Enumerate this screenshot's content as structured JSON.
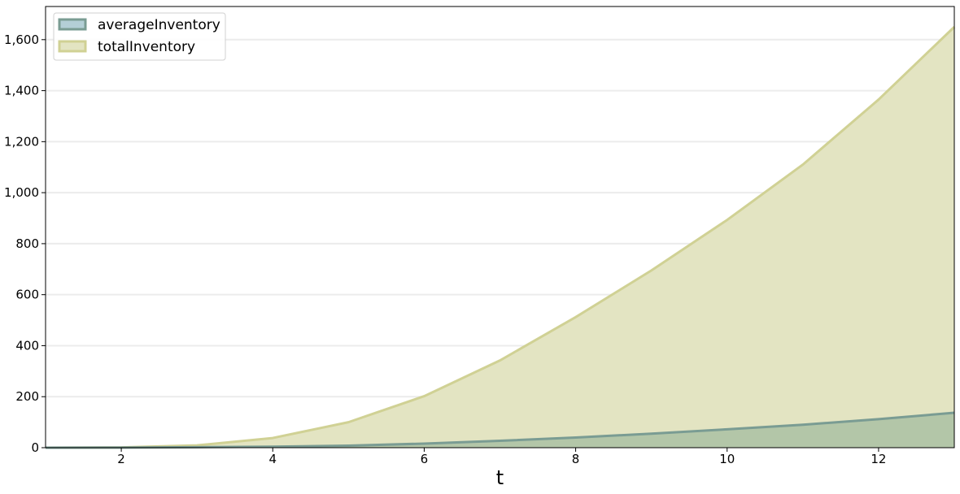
{
  "chart_data": {
    "type": "area",
    "title": "",
    "xlabel": "t",
    "ylabel": "",
    "x": [
      1,
      2,
      3,
      4,
      5,
      6,
      7,
      8,
      9,
      10,
      11,
      12,
      13
    ],
    "xlim": [
      1,
      13
    ],
    "ylim": [
      0,
      1730
    ],
    "xticks": [
      2,
      4,
      6,
      8,
      10,
      12
    ],
    "xtick_labels": [
      "2",
      "4",
      "6",
      "8",
      "10",
      "12"
    ],
    "yticks": [
      0,
      200,
      400,
      600,
      800,
      1000,
      1200,
      1400,
      1600
    ],
    "ytick_labels": [
      "0",
      "200",
      "400",
      "600",
      "800",
      "1,000",
      "1,200",
      "1,400",
      "1,600"
    ],
    "grid": "horizontal",
    "legend_position": "top-left",
    "series": [
      {
        "name": "averageInventory",
        "values": [
          0,
          0.5,
          2,
          4,
          8,
          16,
          27,
          40,
          55,
          72,
          90,
          112,
          137
        ],
        "fill_color": "#b4cfd6",
        "line_color": "#7a9c93"
      },
      {
        "name": "totalInventory",
        "values": [
          0,
          1,
          9,
          38,
          100,
          202,
          342,
          512,
          695,
          893,
          1110,
          1365,
          1650
        ],
        "fill_color": "#e3e4c2",
        "line_color": "#d0d194"
      }
    ],
    "overlap_fill_color": "#b3c6a8"
  }
}
